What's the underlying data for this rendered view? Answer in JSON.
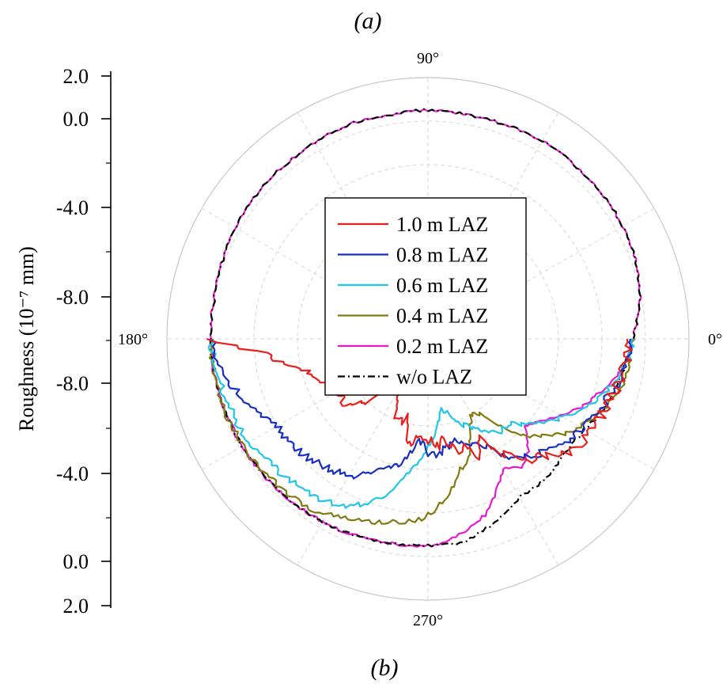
{
  "panel_labels": {
    "top": "(a)",
    "bottom": "(b)"
  },
  "chart_data": {
    "type": "line",
    "subtype": "polar",
    "title": "",
    "ylabel": "Roughness (10⁻⁷ mm)",
    "r_axis": {
      "upper_ticks": [
        "2.0",
        "0.0",
        "-4.0",
        "-8.0"
      ],
      "lower_ticks": [
        "-8.0",
        "-4.0",
        "0.0",
        "2.0"
      ],
      "range": [
        -10,
        2
      ],
      "grid": true
    },
    "angle_axis": {
      "unit": "degree",
      "tick_labels": [
        "0°",
        "90°",
        "180°",
        "270°"
      ]
    },
    "legend_position": "center",
    "colors": {
      "1.0 m LAZ": "#e8201d",
      "0.8 m LAZ": "#1a2fc0",
      "0.6 m LAZ": "#1ec6e8",
      "0.4 m LAZ": "#807a10",
      "0.2 m LAZ": "#e81ad0",
      "w/o LAZ": "#000000"
    },
    "upper_profile": {
      "name": "common",
      "theta": [
        0,
        10,
        20,
        30,
        40,
        50,
        60,
        70,
        80,
        90,
        100,
        110,
        120,
        130,
        140,
        150,
        160,
        170,
        180
      ],
      "r": [
        -0.6,
        -0.1,
        0.2,
        0.35,
        0.4,
        0.45,
        0.5,
        0.45,
        0.45,
        0.5,
        0.45,
        0.5,
        0.4,
        0.35,
        0.3,
        0.2,
        0.1,
        0.0,
        0.0
      ]
    },
    "series": [
      {
        "name": "1.0 m LAZ",
        "theta": [
          180,
          185,
          189,
          193,
          197,
          201,
          205,
          209,
          214,
          218,
          222,
          226,
          231,
          236,
          241,
          246,
          250,
          255,
          260,
          265,
          270,
          275,
          279,
          284,
          288,
          293,
          298,
          302,
          307,
          312,
          317,
          322,
          327,
          331,
          336,
          341,
          347,
          353,
          358,
          360
        ],
        "r": [
          0.0,
          -2.5,
          -3.2,
          -4.0,
          -4.5,
          -4.8,
          -5.0,
          -5.2,
          -5.3,
          -5.0,
          -5.7,
          -6.0,
          -7.5,
          -7.8,
          -7.4,
          -6.3,
          -6.0,
          -6.2,
          -5.0,
          -5.5,
          -5.4,
          -5.0,
          -5.4,
          -4.7,
          -4.8,
          -4.2,
          -4.8,
          -3.9,
          -3.1,
          -2.6,
          -2.3,
          -1.6,
          -1.4,
          -1.5,
          -1.3,
          -1.2,
          -1.0,
          -0.9,
          -0.7,
          -0.6
        ]
      },
      {
        "name": "0.8 m LAZ",
        "theta": [
          180,
          190,
          200,
          210,
          220,
          230,
          240,
          250,
          255,
          260,
          265,
          270,
          275,
          280,
          286,
          290,
          295,
          300,
          305,
          310,
          315,
          320,
          325,
          330,
          336,
          342,
          348,
          354,
          360
        ],
        "r": [
          0.0,
          -0.5,
          -1.2,
          -2.0,
          -2.1,
          -2.4,
          -2.7,
          -3.5,
          -4.0,
          -4.4,
          -5.4,
          -4.8,
          -4.6,
          -5.0,
          -5.2,
          -5.0,
          -4.7,
          -4.2,
          -3.2,
          -2.9,
          -2.6,
          -2.2,
          -1.9,
          -1.8,
          -1.6,
          -1.3,
          -1.0,
          -0.8,
          -0.6
        ]
      },
      {
        "name": "0.6 m LAZ",
        "theta": [
          180,
          195,
          210,
          220,
          230,
          238,
          245,
          250,
          255,
          260,
          265,
          270,
          275,
          280,
          285,
          290,
          296,
          302,
          308,
          314,
          320,
          325,
          330,
          336,
          342,
          348,
          354,
          360
        ],
        "r": [
          0.0,
          -0.3,
          -0.5,
          -0.8,
          -1.0,
          -1.2,
          -1.5,
          -2.0,
          -2.6,
          -3.6,
          -4.2,
          -5.0,
          -5.8,
          -6.7,
          -6.6,
          -5.9,
          -5.5,
          -4.9,
          -4.6,
          -4.6,
          -3.9,
          -3.4,
          -2.8,
          -2.2,
          -1.6,
          -1.1,
          -0.8,
          -0.6
        ]
      },
      {
        "name": "0.4 m LAZ",
        "theta": [
          180,
          200,
          220,
          235,
          245,
          255,
          262,
          268,
          273,
          278,
          284,
          290,
          295,
          300,
          305,
          310,
          315,
          320,
          325,
          330,
          336,
          342,
          348,
          354,
          360
        ],
        "r": [
          0.0,
          -0.1,
          -0.3,
          -0.5,
          -0.9,
          -1.3,
          -1.5,
          -1.7,
          -2.2,
          -2.9,
          -3.8,
          -4.4,
          -5.5,
          -6.0,
          -5.8,
          -4.7,
          -3.7,
          -3.1,
          -2.4,
          -1.9,
          -1.5,
          -1.1,
          -0.8,
          -0.6,
          -0.6
        ]
      },
      {
        "name": "0.2 m LAZ",
        "theta": [
          180,
          200,
          220,
          240,
          255,
          265,
          270,
          275,
          282,
          288,
          294,
          300,
          306,
          312,
          318,
          324,
          330,
          336,
          342,
          348,
          354,
          360
        ],
        "r": [
          0.0,
          -0.1,
          -0.2,
          -0.3,
          -0.4,
          -0.5,
          -0.5,
          -0.6,
          -1.1,
          -1.5,
          -2.3,
          -3.1,
          -2.7,
          -3.1,
          -4.0,
          -3.6,
          -3.0,
          -2.3,
          -1.8,
          -1.2,
          -0.8,
          -0.6
        ]
      },
      {
        "name": "w/o LAZ",
        "theta": [
          180,
          200,
          220,
          240,
          255,
          265,
          270,
          275,
          280,
          285,
          290,
          295,
          300,
          305,
          310,
          315,
          320,
          325,
          330,
          336,
          342,
          348,
          354,
          360
        ],
        "r": [
          0.0,
          -0.1,
          -0.2,
          -0.3,
          -0.4,
          -0.5,
          -0.5,
          -0.5,
          -0.5,
          -0.8,
          -1.0,
          -1.3,
          -1.6,
          -1.6,
          -1.6,
          -1.7,
          -1.8,
          -1.8,
          -1.7,
          -1.4,
          -1.2,
          -1.0,
          -0.8,
          -0.6
        ]
      }
    ]
  }
}
